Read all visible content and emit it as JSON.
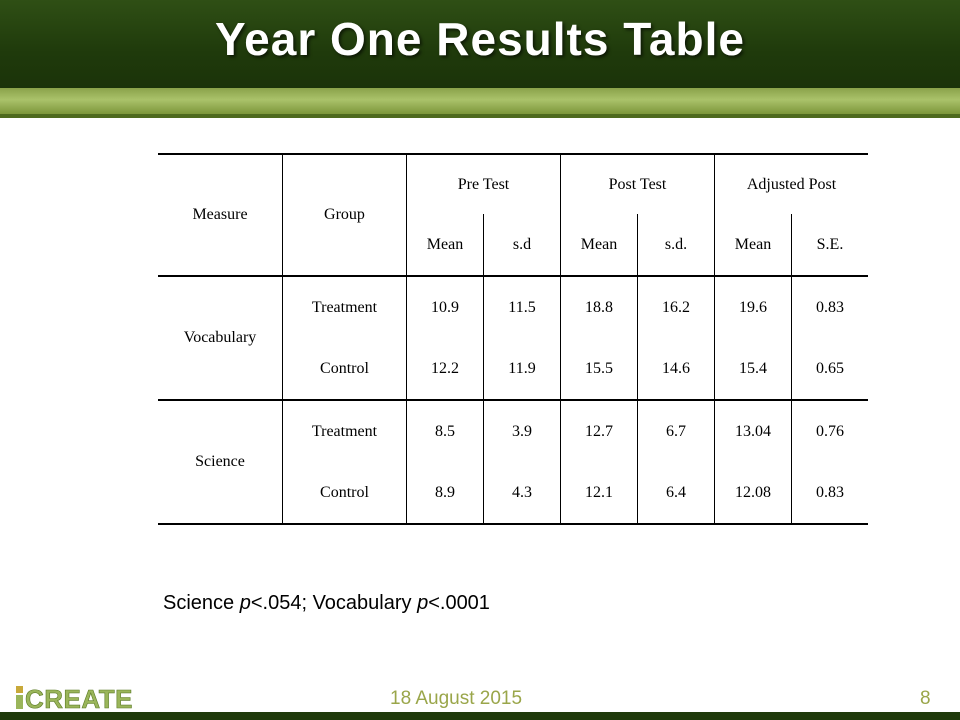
{
  "title": "Year One Results Table",
  "colors": {
    "header_green": "#1f3a0b",
    "band_green": "#9ab55a",
    "date_green": "#9aa64a"
  },
  "table": {
    "header": {
      "measure": "Measure",
      "group": "Group",
      "pre_test": "Pre Test",
      "post_test": "Post Test",
      "adjusted_post": "Adjusted Post",
      "sub": [
        "Mean",
        "s.d",
        "Mean",
        "s.d.",
        "Mean",
        "S.E."
      ]
    },
    "measures": [
      {
        "name": "Vocabulary",
        "rows": [
          {
            "group": "Treatment",
            "values": [
              "10.9",
              "11.5",
              "18.8",
              "16.2",
              "19.6",
              "0.83"
            ]
          },
          {
            "group": "Control",
            "values": [
              "12.2",
              "11.9",
              "15.5",
              "14.6",
              "15.4",
              "0.65"
            ]
          }
        ]
      },
      {
        "name": "Science",
        "rows": [
          {
            "group": "Treatment",
            "values": [
              "8.5",
              "3.9",
              "12.7",
              "6.7",
              "13.04",
              "0.76"
            ]
          },
          {
            "group": "Control",
            "values": [
              "8.9",
              "4.3",
              "12.1",
              "6.4",
              "12.08",
              "0.83"
            ]
          }
        ]
      }
    ]
  },
  "footnote": {
    "part1": "Science ",
    "p1": "p",
    "part2": "<.054; Vocabulary ",
    "p2": "p",
    "part3": "<.0001"
  },
  "footer": {
    "logo_text": "CREATE",
    "date": "18 August 2015",
    "page_number": "8"
  }
}
